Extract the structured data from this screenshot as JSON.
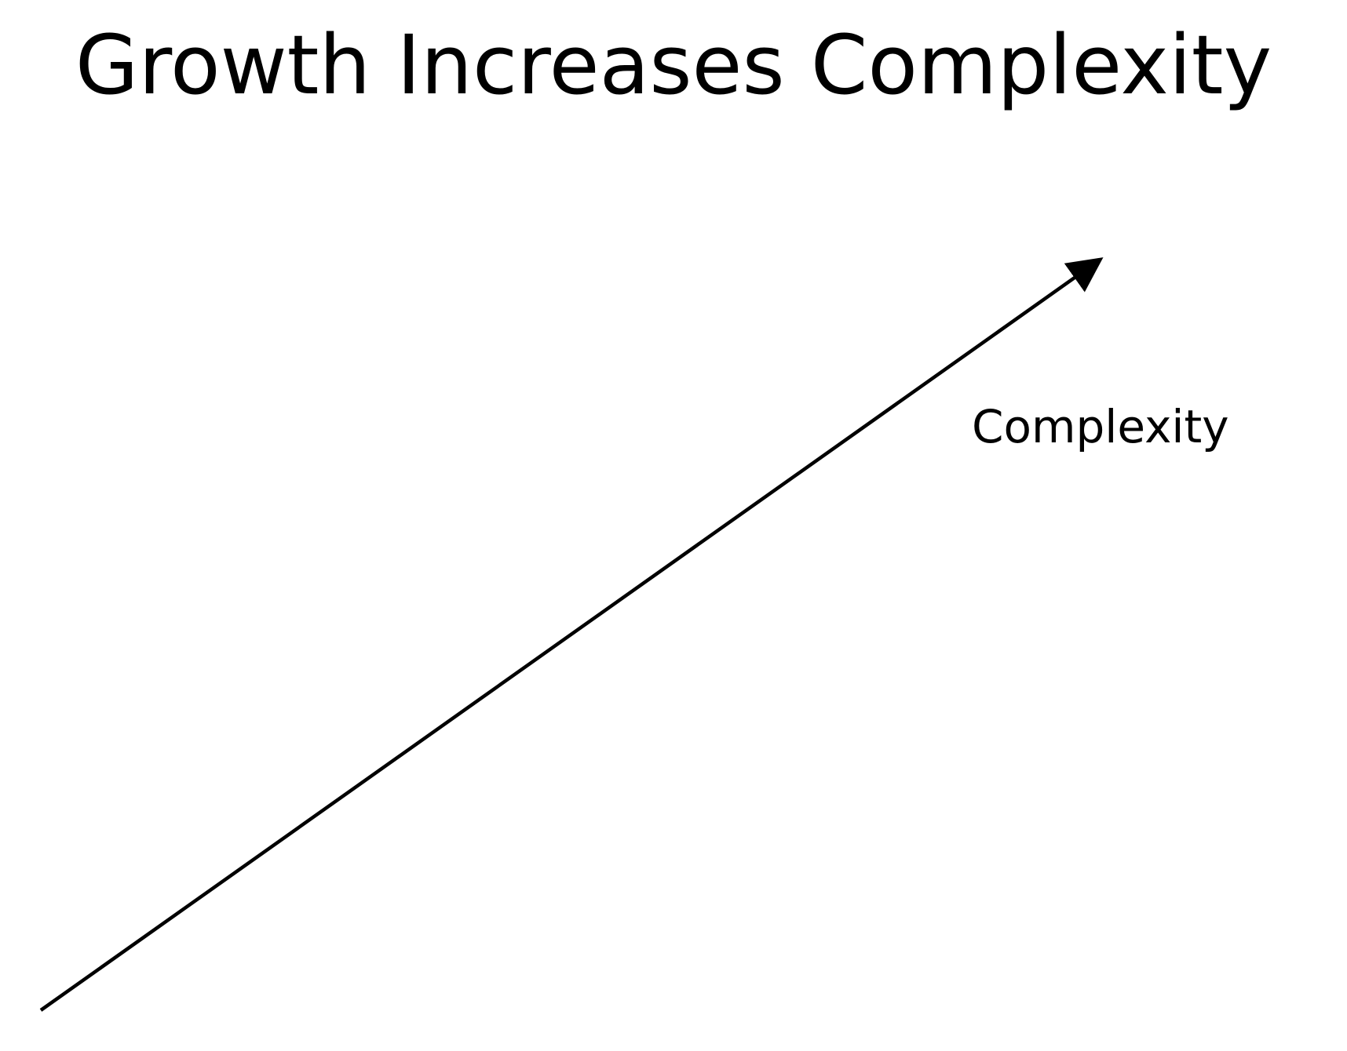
{
  "slide": {
    "title": "Growth Increases Complexity",
    "arrow_label": "Complexity",
    "colors": {
      "background": "#ffffff",
      "text": "#000000",
      "arrow": "#000000"
    }
  }
}
